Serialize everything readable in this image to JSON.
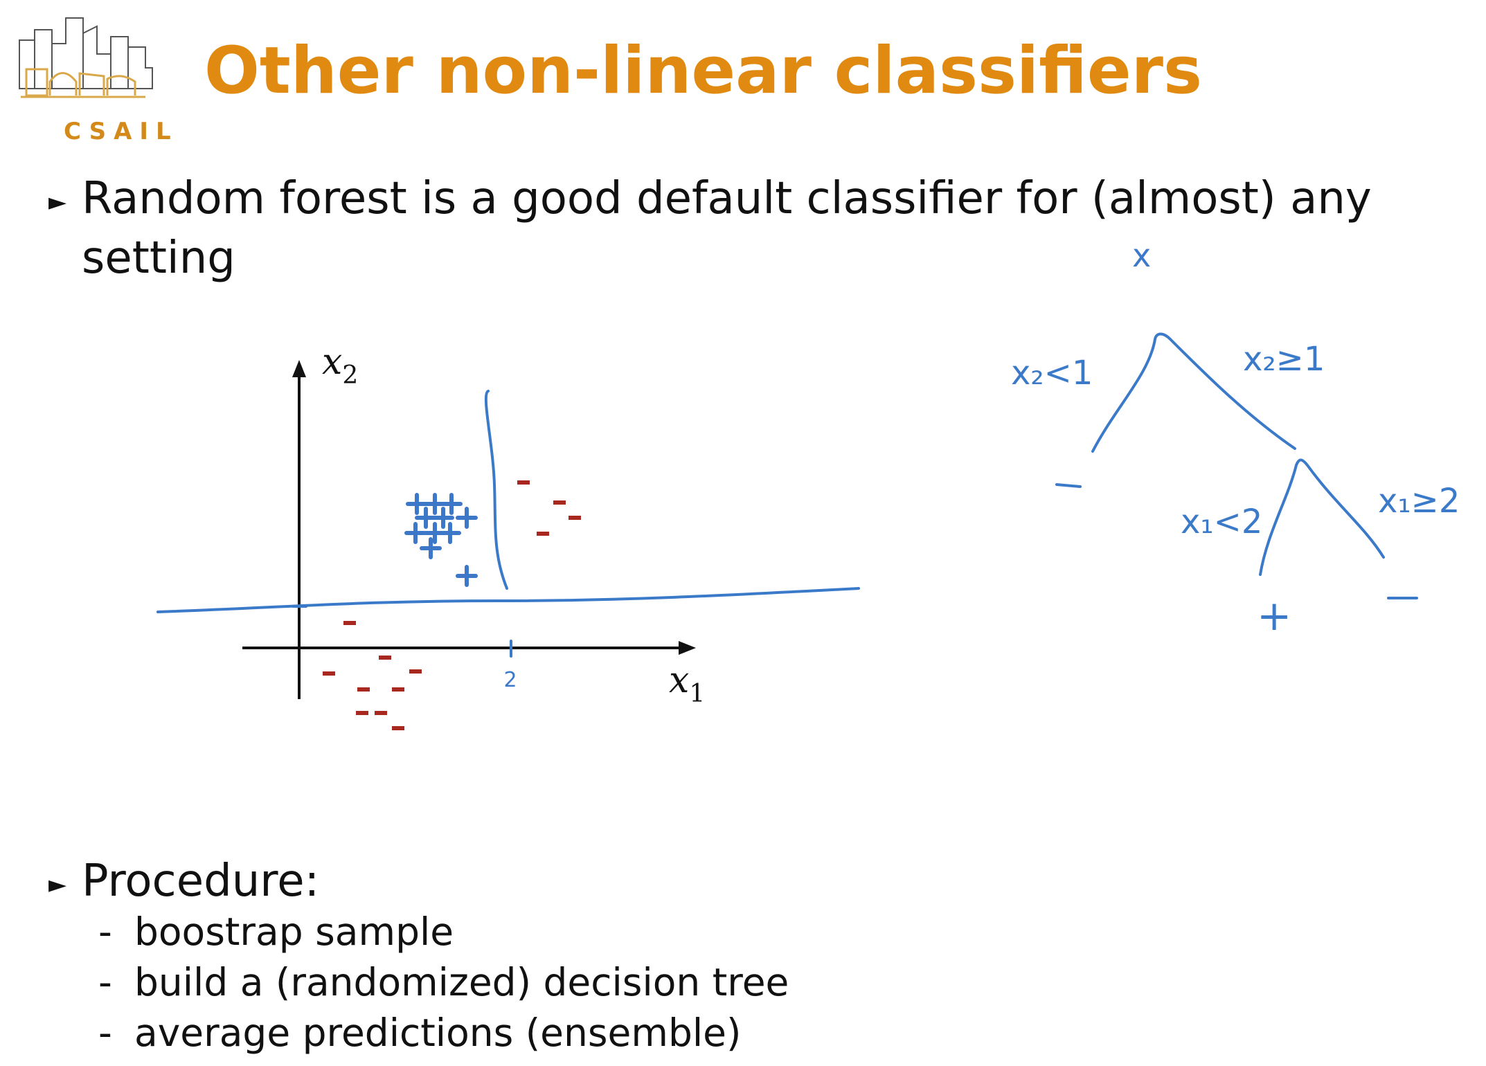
{
  "slide": {
    "title": "Other non-linear classifiers",
    "logo_text": "CSAIL",
    "bullets": [
      "Random forest is a good default classifier for (almost) any setting",
      "Procedure:"
    ],
    "procedure_steps": [
      "boostrap sample",
      "build a (randomized) decision tree",
      "average predictions (ensemble)"
    ],
    "step_marker": "-"
  },
  "scatter": {
    "x_axis_label": "x",
    "x_axis_sub": "1",
    "y_axis_label": "x",
    "y_axis_sub": "2",
    "tick_label": "2",
    "plus_symbol": "+",
    "minus_symbol": "-",
    "colors": {
      "plus": "#3d78c8",
      "minus": "#a8281f",
      "ink": "#3b7ac9",
      "title": "#e08a12"
    }
  },
  "tree": {
    "root_label": "x",
    "left_split": "x₂<1",
    "right_split": "x₂≥1",
    "left_leaf": "-",
    "sub_left_split": "x₁<2",
    "sub_right_split": "x₁≥2",
    "sub_left_leaf": "+",
    "sub_right_leaf": "-"
  }
}
